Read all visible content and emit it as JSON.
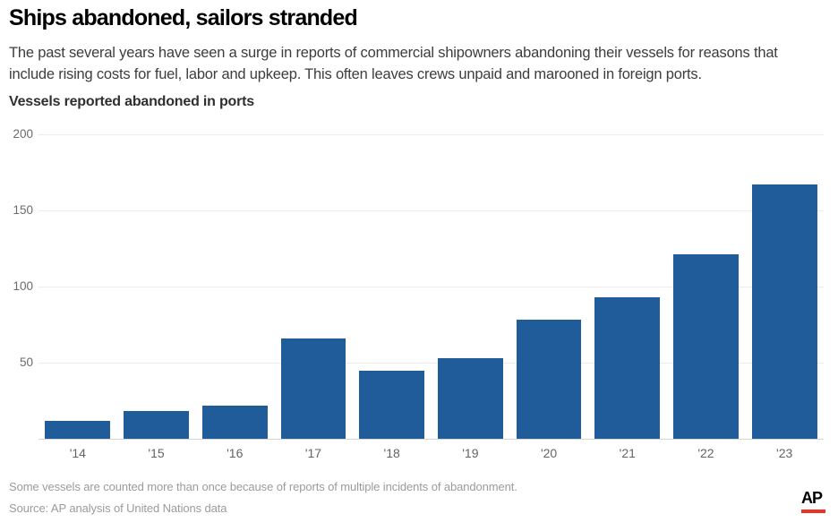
{
  "header": {
    "title": "Ships abandoned, sailors stranded",
    "description": "The past several years have seen a surge in reports of commercial shipowners abandoning their vessels for reasons that include rising costs for fuel, labor and upkeep. This often leaves crews unpaid and marooned in foreign ports."
  },
  "chart_data": {
    "type": "bar",
    "title": "Vessels reported abandoned in ports",
    "categories": [
      "'14",
      "'15",
      "'16",
      "'17",
      "'18",
      "'19",
      "'20",
      "'21",
      "'22",
      "'23"
    ],
    "values": [
      12,
      18,
      22,
      66,
      45,
      53,
      78,
      93,
      121,
      167
    ],
    "xlabel": "",
    "ylabel": "",
    "ylim": [
      0,
      200
    ],
    "yticks": [
      50,
      100,
      150,
      200
    ],
    "grid": true,
    "legend": "none",
    "bar_color": "#1f5c99"
  },
  "footer": {
    "note": "Some vessels are counted more than once because of reports of multiple incidents of abandonment.",
    "source": "Source: AP analysis of United Nations data",
    "logo_text": "AP",
    "logo_underline_color": "#ee3124"
  }
}
